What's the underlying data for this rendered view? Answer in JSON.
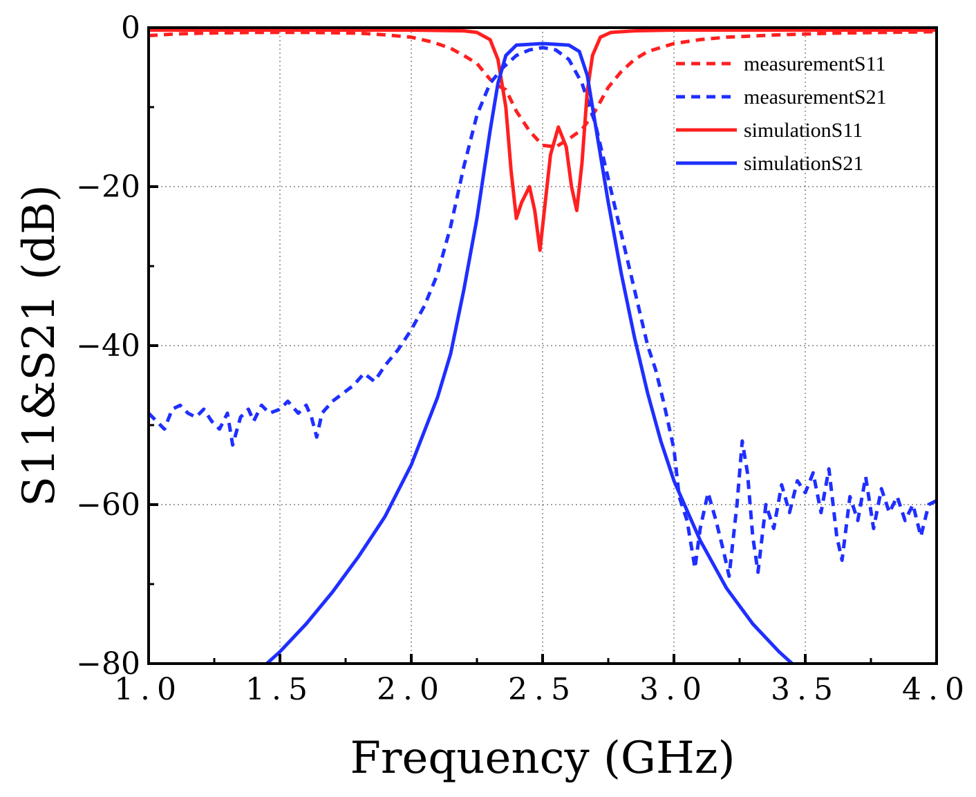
{
  "chart_data": {
    "type": "line",
    "title": "",
    "xlabel": "Frequency (GHz)",
    "ylabel": "S11&S21 (dB)",
    "xlim": [
      1.0,
      4.0
    ],
    "ylim": [
      -80,
      0
    ],
    "x_ticks": [
      1.0,
      1.5,
      2.0,
      2.5,
      3.0,
      3.5,
      4.0
    ],
    "x_tick_labels": [
      "1.0",
      "1.5",
      "2.0",
      "2.5",
      "3.0",
      "3.5",
      "4.0"
    ],
    "y_ticks": [
      0,
      -20,
      -40,
      -60,
      -80
    ],
    "y_tick_labels": [
      "0",
      "−20",
      "−40",
      "−60",
      "−80"
    ],
    "grid": "dotted",
    "legend_position": "top-right",
    "series": [
      {
        "name": "measurementS11",
        "color": "#ff2020",
        "style": "dashed",
        "points": [
          [
            1.0,
            -1.0
          ],
          [
            1.1,
            -0.8
          ],
          [
            1.2,
            -0.7
          ],
          [
            1.4,
            -0.6
          ],
          [
            1.6,
            -0.6
          ],
          [
            1.8,
            -0.7
          ],
          [
            1.9,
            -0.9
          ],
          [
            2.0,
            -1.2
          ],
          [
            2.08,
            -1.8
          ],
          [
            2.15,
            -2.6
          ],
          [
            2.2,
            -3.5
          ],
          [
            2.25,
            -4.5
          ],
          [
            2.3,
            -6.5
          ],
          [
            2.33,
            -7.3
          ],
          [
            2.36,
            -7.8
          ],
          [
            2.4,
            -10.5
          ],
          [
            2.45,
            -13.0
          ],
          [
            2.5,
            -14.8
          ],
          [
            2.55,
            -15.0
          ],
          [
            2.6,
            -14.0
          ],
          [
            2.65,
            -12.8
          ],
          [
            2.7,
            -10.5
          ],
          [
            2.75,
            -7.5
          ],
          [
            2.8,
            -5.5
          ],
          [
            2.85,
            -4.0
          ],
          [
            2.9,
            -3.0
          ],
          [
            2.95,
            -2.5
          ],
          [
            3.0,
            -2.0
          ],
          [
            3.1,
            -1.5
          ],
          [
            3.2,
            -1.2
          ],
          [
            3.4,
            -0.9
          ],
          [
            3.6,
            -0.7
          ],
          [
            3.8,
            -0.6
          ],
          [
            4.0,
            -0.5
          ]
        ]
      },
      {
        "name": "measurementS21",
        "color": "#1f2fff",
        "style": "dashed",
        "points": [
          [
            1.0,
            -48.5
          ],
          [
            1.03,
            -49.5
          ],
          [
            1.06,
            -50.5
          ],
          [
            1.09,
            -48.0
          ],
          [
            1.12,
            -47.5
          ],
          [
            1.15,
            -48.5
          ],
          [
            1.18,
            -49.0
          ],
          [
            1.21,
            -48.0
          ],
          [
            1.24,
            -49.5
          ],
          [
            1.27,
            -50.5
          ],
          [
            1.3,
            -48.5
          ],
          [
            1.32,
            -52.5
          ],
          [
            1.35,
            -49.0
          ],
          [
            1.38,
            -48.0
          ],
          [
            1.4,
            -49.5
          ],
          [
            1.43,
            -47.5
          ],
          [
            1.46,
            -48.5
          ],
          [
            1.5,
            -48.0
          ],
          [
            1.53,
            -47.0
          ],
          [
            1.57,
            -48.5
          ],
          [
            1.6,
            -47.5
          ],
          [
            1.62,
            -49.0
          ],
          [
            1.64,
            -51.5
          ],
          [
            1.66,
            -48.5
          ],
          [
            1.7,
            -47.0
          ],
          [
            1.74,
            -46.0
          ],
          [
            1.78,
            -45.0
          ],
          [
            1.82,
            -43.5
          ],
          [
            1.86,
            -44.5
          ],
          [
            1.9,
            -42.5
          ],
          [
            1.95,
            -40.5
          ],
          [
            2.0,
            -38.0
          ],
          [
            2.05,
            -35.0
          ],
          [
            2.1,
            -31.0
          ],
          [
            2.15,
            -25.0
          ],
          [
            2.2,
            -17.5
          ],
          [
            2.25,
            -11.0
          ],
          [
            2.3,
            -7.0
          ],
          [
            2.35,
            -5.0
          ],
          [
            2.4,
            -3.5
          ],
          [
            2.45,
            -2.8
          ],
          [
            2.5,
            -2.5
          ],
          [
            2.55,
            -2.8
          ],
          [
            2.6,
            -4.0
          ],
          [
            2.65,
            -7.0
          ],
          [
            2.7,
            -12.0
          ],
          [
            2.75,
            -19.0
          ],
          [
            2.8,
            -26.0
          ],
          [
            2.85,
            -33.0
          ],
          [
            2.9,
            -40.0
          ],
          [
            2.93,
            -43.0
          ],
          [
            2.96,
            -47.0
          ],
          [
            2.98,
            -50.0
          ],
          [
            3.0,
            -53.0
          ],
          [
            3.02,
            -59.0
          ],
          [
            3.05,
            -62.0
          ],
          [
            3.08,
            -68.0
          ],
          [
            3.1,
            -63.0
          ],
          [
            3.13,
            -58.5
          ],
          [
            3.16,
            -62.0
          ],
          [
            3.19,
            -66.0
          ],
          [
            3.21,
            -69.0
          ],
          [
            3.24,
            -60.0
          ],
          [
            3.26,
            -52.0
          ],
          [
            3.28,
            -56.0
          ],
          [
            3.3,
            -64.0
          ],
          [
            3.32,
            -68.5
          ],
          [
            3.35,
            -60.0
          ],
          [
            3.38,
            -63.0
          ],
          [
            3.41,
            -57.5
          ],
          [
            3.44,
            -61.0
          ],
          [
            3.47,
            -57.0
          ],
          [
            3.5,
            -58.5
          ],
          [
            3.53,
            -56.0
          ],
          [
            3.56,
            -61.0
          ],
          [
            3.59,
            -55.5
          ],
          [
            3.62,
            -64.0
          ],
          [
            3.64,
            -67.0
          ],
          [
            3.67,
            -59.0
          ],
          [
            3.7,
            -62.0
          ],
          [
            3.73,
            -56.5
          ],
          [
            3.76,
            -63.0
          ],
          [
            3.79,
            -58.0
          ],
          [
            3.82,
            -61.0
          ],
          [
            3.85,
            -59.0
          ],
          [
            3.88,
            -62.0
          ],
          [
            3.91,
            -60.0
          ],
          [
            3.94,
            -64.0
          ],
          [
            3.97,
            -60.0
          ],
          [
            4.0,
            -59.5
          ]
        ]
      },
      {
        "name": "simulationS11",
        "color": "#ff2020",
        "style": "solid",
        "points": [
          [
            1.0,
            -0.3
          ],
          [
            1.5,
            -0.3
          ],
          [
            2.0,
            -0.3
          ],
          [
            2.2,
            -0.4
          ],
          [
            2.25,
            -0.6
          ],
          [
            2.3,
            -1.5
          ],
          [
            2.33,
            -4.0
          ],
          [
            2.36,
            -10.0
          ],
          [
            2.38,
            -18.0
          ],
          [
            2.4,
            -24.0
          ],
          [
            2.42,
            -22.0
          ],
          [
            2.45,
            -20.0
          ],
          [
            2.47,
            -23.0
          ],
          [
            2.49,
            -28.0
          ],
          [
            2.51,
            -22.0
          ],
          [
            2.53,
            -16.0
          ],
          [
            2.56,
            -12.5
          ],
          [
            2.59,
            -15.0
          ],
          [
            2.61,
            -20.0
          ],
          [
            2.63,
            -23.0
          ],
          [
            2.65,
            -17.0
          ],
          [
            2.67,
            -8.0
          ],
          [
            2.69,
            -3.5
          ],
          [
            2.72,
            -1.2
          ],
          [
            2.76,
            -0.6
          ],
          [
            2.85,
            -0.4
          ],
          [
            3.0,
            -0.3
          ],
          [
            3.5,
            -0.3
          ],
          [
            4.0,
            -0.3
          ]
        ]
      },
      {
        "name": "simulationS21",
        "color": "#1f2fff",
        "style": "solid",
        "points": [
          [
            1.45,
            -80.0
          ],
          [
            1.5,
            -78.5
          ],
          [
            1.6,
            -75.0
          ],
          [
            1.7,
            -71.0
          ],
          [
            1.8,
            -66.5
          ],
          [
            1.9,
            -61.5
          ],
          [
            2.0,
            -55.0
          ],
          [
            2.1,
            -46.5
          ],
          [
            2.15,
            -41.0
          ],
          [
            2.2,
            -33.0
          ],
          [
            2.25,
            -24.0
          ],
          [
            2.3,
            -13.0
          ],
          [
            2.33,
            -7.0
          ],
          [
            2.36,
            -3.5
          ],
          [
            2.4,
            -2.2
          ],
          [
            2.5,
            -2.0
          ],
          [
            2.6,
            -2.2
          ],
          [
            2.64,
            -3.0
          ],
          [
            2.67,
            -6.0
          ],
          [
            2.7,
            -12.0
          ],
          [
            2.75,
            -22.0
          ],
          [
            2.8,
            -31.0
          ],
          [
            2.85,
            -39.0
          ],
          [
            2.9,
            -46.0
          ],
          [
            2.95,
            -52.0
          ],
          [
            3.0,
            -57.0
          ],
          [
            3.1,
            -64.5
          ],
          [
            3.2,
            -70.5
          ],
          [
            3.3,
            -75.0
          ],
          [
            3.4,
            -78.5
          ],
          [
            3.45,
            -80.0
          ]
        ]
      }
    ]
  }
}
